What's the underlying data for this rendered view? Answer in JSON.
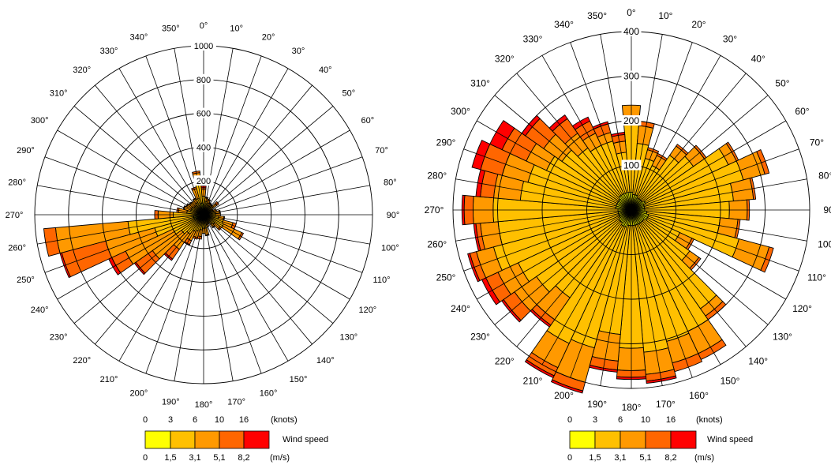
{
  "legend": {
    "knots_ticks": [
      "0",
      "3",
      "6",
      "10",
      "16"
    ],
    "knots_unit": "(knots)",
    "ms_ticks": [
      "0",
      "1,5",
      "3,1",
      "5,1",
      "8,2"
    ],
    "ms_unit": "(m/s)",
    "title": "Wind speed",
    "colors": [
      "#ffff00",
      "#ffc000",
      "#ff9900",
      "#ff6600",
      "#ff0000"
    ]
  },
  "chart_data": [
    {
      "type": "wind-rose",
      "direction_step_deg": 10,
      "angle_labels": [
        "0°",
        "10°",
        "20°",
        "30°",
        "40°",
        "50°",
        "60°",
        "70°",
        "80°",
        "90°",
        "100°",
        "110°",
        "120°",
        "130°",
        "140°",
        "150°",
        "160°",
        "170°",
        "180°",
        "190°",
        "200°",
        "210°",
        "220°",
        "230°",
        "240°",
        "250°",
        "260°",
        "270°",
        "280°",
        "290°",
        "300°",
        "310°",
        "320°",
        "330°",
        "340°",
        "350°"
      ],
      "rmax": 1000,
      "rings": [
        200,
        400,
        600,
        800,
        1000
      ],
      "ring_labels": [
        "200",
        "400",
        "600",
        "800",
        "1000"
      ],
      "speed_classes": [
        "0–1,5",
        "1,5–3,1",
        "3,1–5,1",
        "5,1–8,2",
        ">8,2"
      ],
      "directions": [
        0,
        10,
        20,
        30,
        40,
        50,
        60,
        70,
        80,
        90,
        100,
        110,
        120,
        130,
        140,
        150,
        160,
        170,
        180,
        190,
        200,
        210,
        220,
        230,
        240,
        250,
        260,
        270,
        280,
        290,
        300,
        310,
        320,
        330,
        340,
        350
      ],
      "cumulative": [
        [
          60,
          110,
          150,
          160,
          170
        ],
        [
          40,
          80,
          100,
          105,
          105
        ],
        [
          30,
          70,
          90,
          95,
          95
        ],
        [
          30,
          60,
          75,
          80,
          80
        ],
        [
          30,
          60,
          70,
          75,
          75
        ],
        [
          30,
          70,
          95,
          110,
          110
        ],
        [
          25,
          50,
          60,
          60,
          60
        ],
        [
          25,
          60,
          80,
          80,
          80
        ],
        [
          30,
          70,
          95,
          100,
          100
        ],
        [
          30,
          70,
          100,
          100,
          100
        ],
        [
          30,
          90,
          120,
          125,
          125
        ],
        [
          30,
          120,
          180,
          200,
          200
        ],
        [
          30,
          130,
          250,
          260,
          260
        ],
        [
          25,
          80,
          120,
          130,
          130
        ],
        [
          25,
          70,
          90,
          95,
          95
        ],
        [
          20,
          50,
          60,
          60,
          60
        ],
        [
          25,
          60,
          75,
          75,
          75
        ],
        [
          30,
          80,
          120,
          125,
          125
        ],
        [
          30,
          80,
          110,
          110,
          110
        ],
        [
          30,
          90,
          130,
          145,
          145
        ],
        [
          30,
          100,
          140,
          150,
          150
        ],
        [
          30,
          110,
          170,
          195,
          200
        ],
        [
          35,
          140,
          250,
          320,
          330
        ],
        [
          40,
          160,
          370,
          490,
          500
        ],
        [
          45,
          200,
          510,
          600,
          620
        ],
        [
          60,
          300,
          600,
          870,
          880
        ],
        [
          60,
          450,
          880,
          950,
          950
        ],
        [
          40,
          180,
          270,
          290,
          290
        ],
        [
          30,
          100,
          150,
          160,
          160
        ],
        [
          30,
          80,
          120,
          125,
          125
        ],
        [
          30,
          80,
          110,
          115,
          115
        ],
        [
          30,
          70,
          100,
          105,
          105
        ],
        [
          30,
          70,
          100,
          100,
          100
        ],
        [
          40,
          80,
          105,
          110,
          110
        ],
        [
          45,
          100,
          160,
          170,
          170
        ],
        [
          70,
          180,
          250,
          260,
          260
        ]
      ]
    },
    {
      "type": "wind-rose",
      "direction_step_deg": 10,
      "angle_labels": [
        "0°",
        "10°",
        "20°",
        "30°",
        "40°",
        "50°",
        "60°",
        "70°",
        "80°",
        "90",
        "100",
        "110°",
        "120°",
        "130°",
        "140°",
        "150°",
        "160°",
        "170°",
        "180°",
        "190°",
        "200°",
        "210°",
        "220°",
        "230°",
        "240°",
        "250°",
        "260°",
        "270°",
        "280°",
        "290°",
        "300°",
        "310°",
        "320°",
        "330°",
        "340°",
        "350°"
      ],
      "rmax": 400,
      "rings": [
        100,
        200,
        300,
        400
      ],
      "ring_labels": [
        "100",
        "200",
        "300",
        "400"
      ],
      "speed_classes": [
        "0–1,5",
        "1,5–3,1",
        "3,1–5,1",
        "5,1–8,2",
        ">8,2"
      ],
      "directions": [
        0,
        10,
        20,
        30,
        40,
        50,
        60,
        70,
        80,
        90,
        100,
        110,
        120,
        130,
        140,
        150,
        160,
        170,
        180,
        190,
        200,
        210,
        220,
        230,
        240,
        250,
        260,
        270,
        280,
        290,
        300,
        310,
        320,
        330,
        340,
        350
      ],
      "cumulative": [
        [
          40,
          200,
          235,
          235,
          235
        ],
        [
          35,
          150,
          190,
          200,
          200
        ],
        [
          35,
          120,
          140,
          145,
          145
        ],
        [
          30,
          110,
          135,
          140,
          140
        ],
        [
          30,
          150,
          175,
          180,
          180
        ],
        [
          30,
          170,
          200,
          205,
          205
        ],
        [
          35,
          240,
          260,
          265,
          265
        ],
        [
          30,
          260,
          310,
          320,
          320
        ],
        [
          30,
          230,
          275,
          280,
          280
        ],
        [
          30,
          220,
          260,
          265,
          265
        ],
        [
          35,
          200,
          240,
          245,
          245
        ],
        [
          40,
          250,
          320,
          330,
          330
        ],
        [
          40,
          120,
          150,
          155,
          155
        ],
        [
          35,
          160,
          185,
          190,
          190
        ],
        [
          35,
          270,
          290,
          300,
          300
        ],
        [
          35,
          300,
          355,
          370,
          370
        ],
        [
          35,
          305,
          355,
          375,
          375
        ],
        [
          35,
          320,
          370,
          385,
          390
        ],
        [
          35,
          310,
          360,
          375,
          380
        ],
        [
          35,
          280,
          340,
          360,
          365
        ],
        [
          40,
          320,
          400,
          420,
          425
        ],
        [
          40,
          330,
          390,
          410,
          415
        ],
        [
          35,
          240,
          300,
          315,
          320
        ],
        [
          35,
          260,
          320,
          350,
          355
        ],
        [
          30,
          280,
          330,
          360,
          370
        ],
        [
          30,
          320,
          360,
          375,
          380
        ],
        [
          30,
          300,
          340,
          350,
          355
        ],
        [
          30,
          310,
          355,
          375,
          380
        ],
        [
          35,
          250,
          310,
          340,
          350
        ],
        [
          35,
          240,
          300,
          350,
          370
        ],
        [
          35,
          210,
          260,
          320,
          350
        ],
        [
          35,
          190,
          240,
          290,
          300
        ],
        [
          40,
          170,
          210,
          250,
          260
        ],
        [
          40,
          160,
          190,
          220,
          230
        ],
        [
          40,
          160,
          180,
          200,
          205
        ],
        [
          40,
          130,
          155,
          170,
          175
        ]
      ]
    }
  ]
}
